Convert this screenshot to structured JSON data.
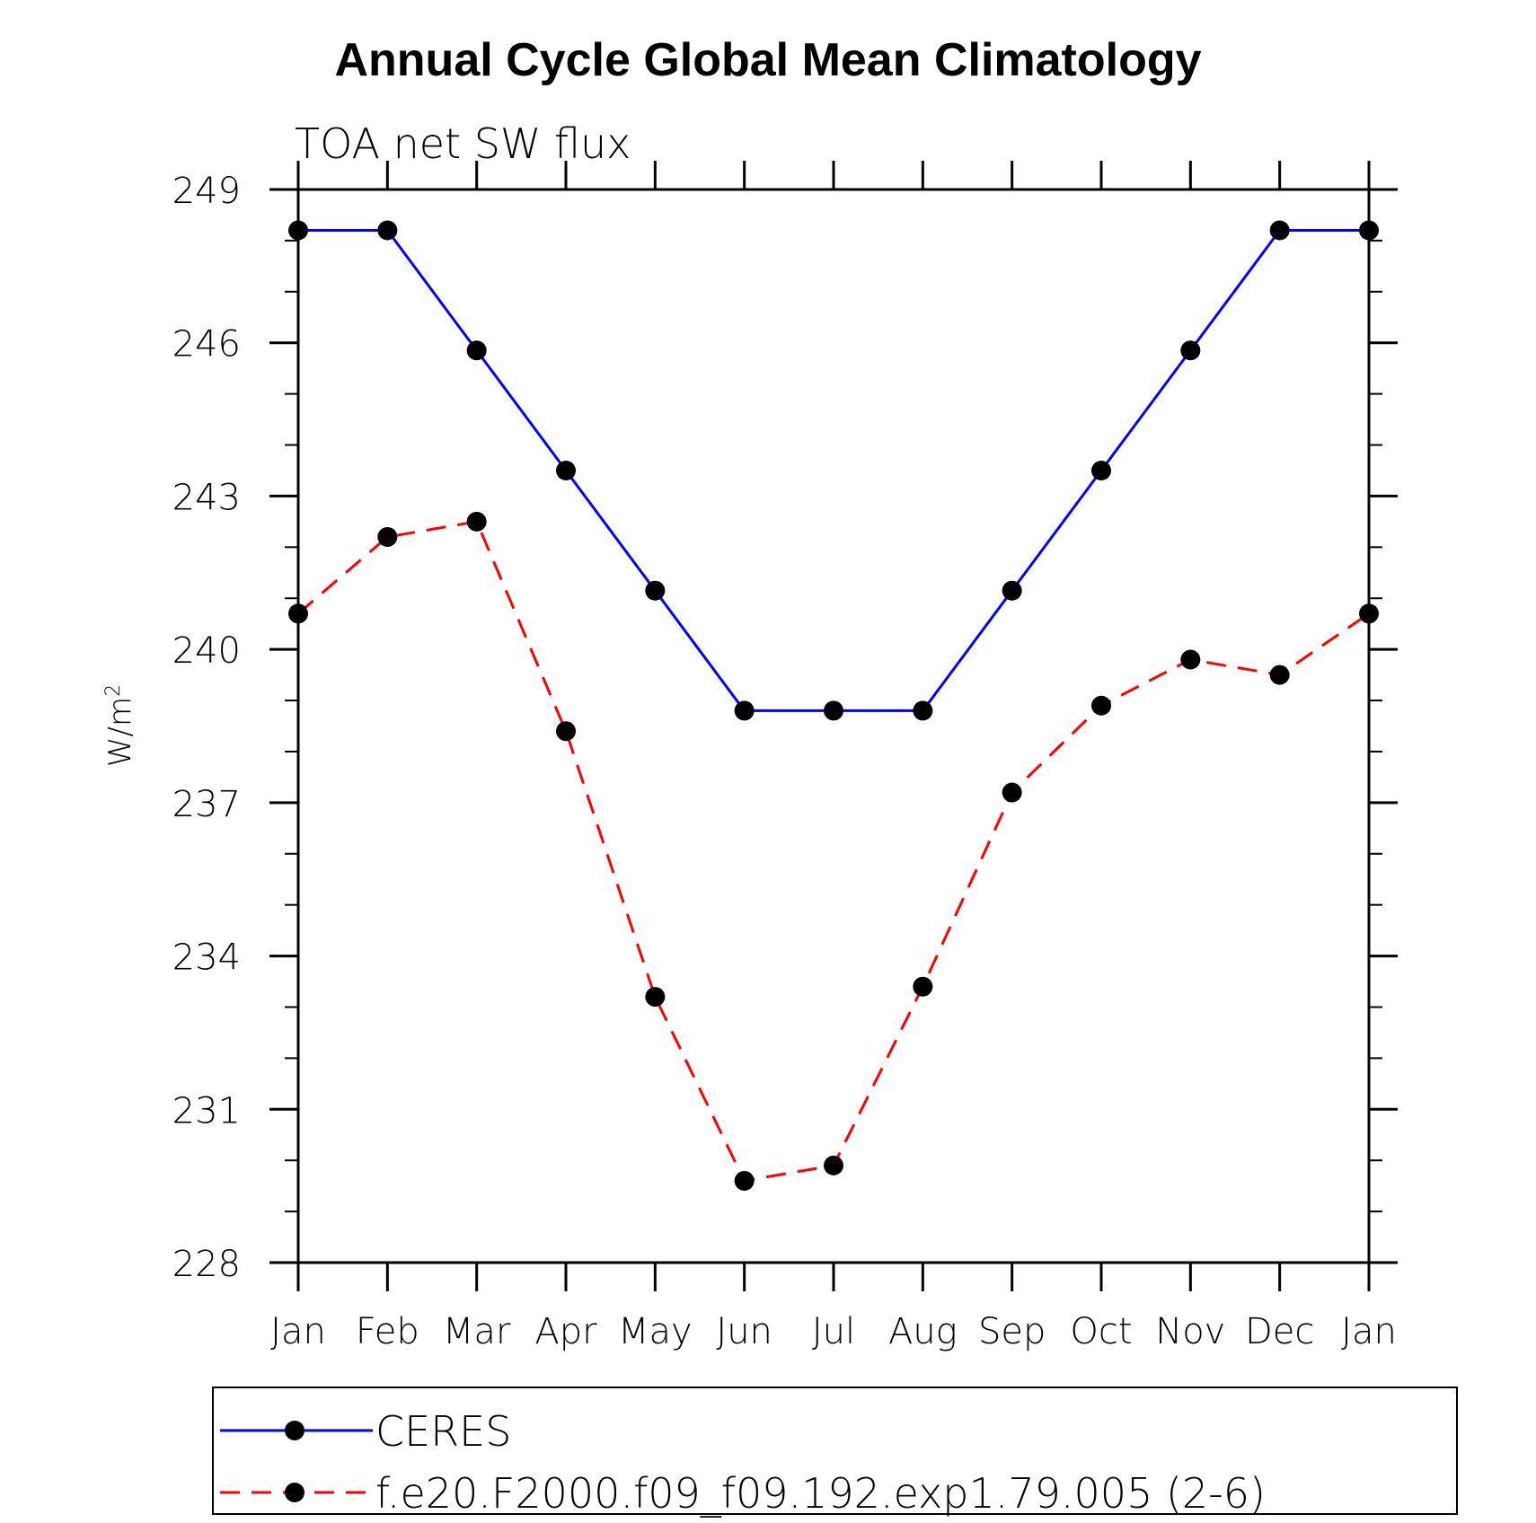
{
  "chart_data": {
    "type": "line",
    "title": "Annual Cycle Global Mean Climatology",
    "subtitle": "TOA net SW flux",
    "xlabel": "",
    "ylabel": "W/m",
    "ylabel_sup": "2",
    "categories": [
      "Jan",
      "Feb",
      "Mar",
      "Apr",
      "May",
      "Jun",
      "Jul",
      "Aug",
      "Sep",
      "Oct",
      "Nov",
      "Dec",
      "Jan"
    ],
    "ylim": [
      228,
      249
    ],
    "yticks": [
      228,
      231,
      234,
      237,
      240,
      243,
      246,
      249
    ],
    "yminor_step": 1,
    "grid": false,
    "legend_position": "bottom",
    "series": [
      {
        "name": "CERES",
        "color": "#0000ff",
        "line_style": "solid",
        "marker": "filled-circle",
        "values": [
          248.2,
          248.2,
          245.85,
          243.5,
          241.15,
          238.8,
          238.8,
          238.8,
          241.15,
          243.5,
          245.85,
          248.2,
          248.2
        ]
      },
      {
        "name": "f.e20.F2000.f09_f09.192.exp1.79.005 (2-6)",
        "color": "#ff0000",
        "line_style": "dashed",
        "marker": "filled-circle",
        "values": [
          240.7,
          242.2,
          242.5,
          238.4,
          233.2,
          229.6,
          229.9,
          233.4,
          237.2,
          238.9,
          239.8,
          239.5,
          240.7
        ]
      }
    ]
  }
}
